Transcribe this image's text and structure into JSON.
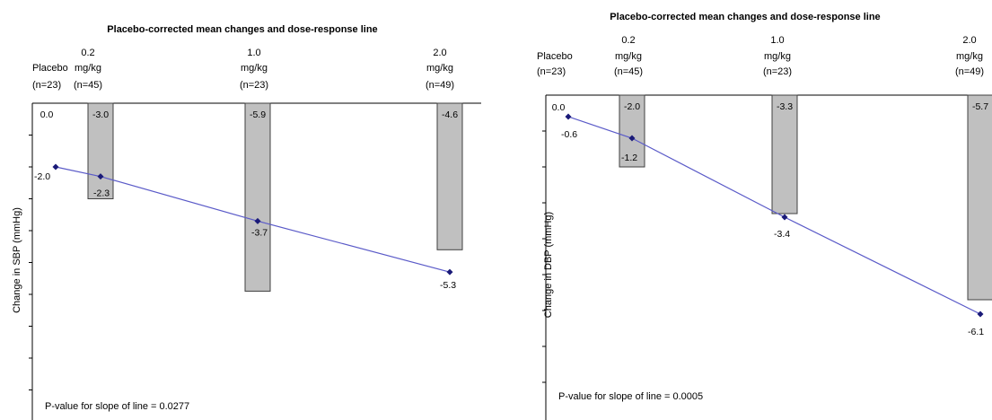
{
  "chart_data": [
    {
      "type": "bar",
      "title": "Placebo-corrected mean changes and dose-response line",
      "ylabel": "Change in SBP (mmHg)",
      "ylim": [
        -9,
        0
      ],
      "grid": false,
      "categories": [
        {
          "group": "Placebo",
          "lines": [
            "",
            "Placebo",
            "(n=23)"
          ]
        },
        {
          "group": "0.2 mg/kg",
          "lines": [
            "0.2",
            "mg/kg",
            "(n=45)"
          ]
        },
        {
          "group": "1.0 mg/kg",
          "lines": [
            "1.0",
            "mg/kg",
            "(n=23)"
          ]
        },
        {
          "group": "2.0 mg/kg",
          "lines": [
            "2.0",
            "mg/kg",
            "(n=49)"
          ]
        }
      ],
      "series": [
        {
          "name": "Placebo-corrected mean change",
          "kind": "bar",
          "x": [
            0.2,
            1.0,
            2.0
          ],
          "values": [
            -3.0,
            -5.9,
            -4.6
          ],
          "labels": [
            "-3.0",
            "-5.9",
            "-4.6"
          ]
        },
        {
          "name": "Dose-response line",
          "kind": "line",
          "x": [
            0.0,
            0.2,
            1.0,
            2.0
          ],
          "values": [
            -2.0,
            -2.3,
            -3.7,
            -5.3
          ],
          "labels": [
            "-2.0",
            "-2.3",
            "-3.7",
            "-5.3"
          ]
        }
      ],
      "placebo_value_label": "0.0",
      "annotation": "P-value for slope of line = 0.0277",
      "colors": {
        "bar_fill": "#c0c0c0",
        "bar_stroke": "#404040",
        "line": "#5a5ac8",
        "marker": "#1a1a78"
      }
    },
    {
      "type": "bar",
      "title": "Placebo-corrected mean changes and dose-response line",
      "ylabel": "Change in DBP (mmHg)",
      "ylim": [
        -8,
        0
      ],
      "grid": false,
      "categories": [
        {
          "group": "Placebo",
          "lines": [
            "",
            "Placebo",
            "(n=23)"
          ]
        },
        {
          "group": "0.2 mg/kg",
          "lines": [
            "0.2",
            "mg/kg",
            "(n=45)"
          ]
        },
        {
          "group": "1.0 mg/kg",
          "lines": [
            "1.0",
            "mg/kg",
            "(n=23)"
          ]
        },
        {
          "group": "2.0 mg/kg",
          "lines": [
            "2.0",
            "mg/kg",
            "(n=49)"
          ]
        }
      ],
      "series": [
        {
          "name": "Placebo-corrected mean change",
          "kind": "bar",
          "x": [
            0.2,
            1.0,
            2.0
          ],
          "values": [
            -2.0,
            -3.3,
            -5.7
          ],
          "labels": [
            "-2.0",
            "-3.3",
            "-5.7"
          ]
        },
        {
          "name": "Dose-response line",
          "kind": "line",
          "x": [
            0.0,
            0.2,
            1.0,
            2.0
          ],
          "values": [
            -0.6,
            -1.2,
            -3.4,
            -6.1
          ],
          "labels": [
            "-0.6",
            "-1.2",
            "-3.4",
            "-6.1"
          ]
        }
      ],
      "placebo_value_label": "0.0",
      "annotation": "P-value for slope of line = 0.0005",
      "colors": {
        "bar_fill": "#c0c0c0",
        "bar_stroke": "#404040",
        "line": "#5a5ac8",
        "marker": "#1a1a78"
      }
    }
  ]
}
